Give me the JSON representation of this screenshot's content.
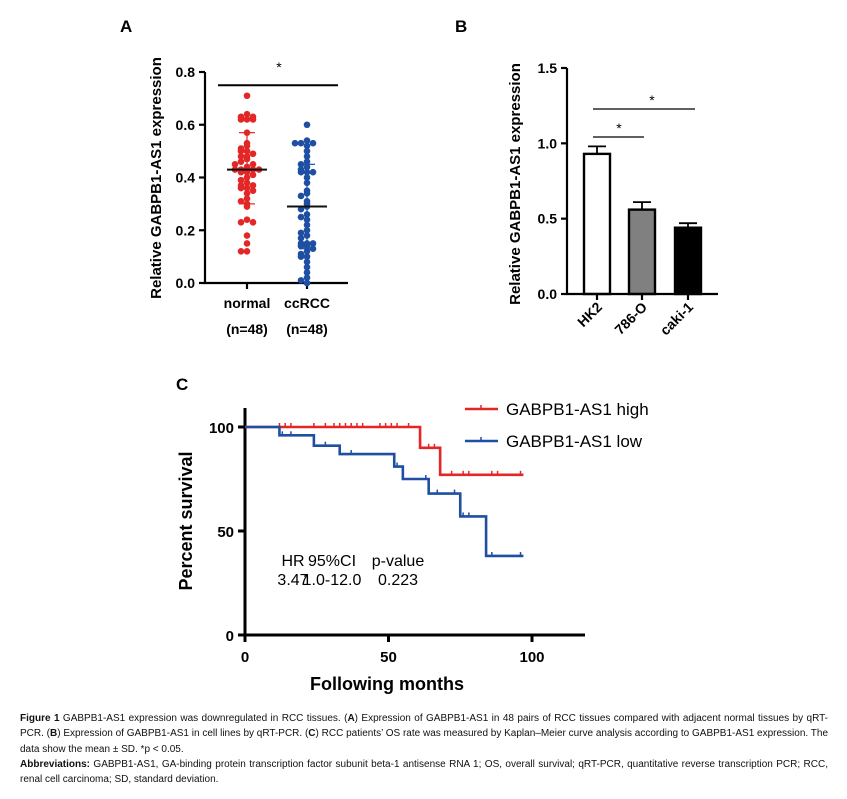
{
  "chart_data": [
    {
      "panel": "A",
      "type": "scatter",
      "ylabel": "Relative GABPB1-AS1 expression",
      "ylim": [
        0,
        0.8
      ],
      "yticks": [
        "0.0",
        "0.2",
        "0.4",
        "0.6",
        "0.8"
      ],
      "categories": [
        "normal",
        "ccRCC"
      ],
      "category_n": [
        "(n=48)",
        "(n=48)"
      ],
      "significance": "*",
      "series": [
        {
          "name": "normal",
          "color": "#e32626",
          "mean": 0.43,
          "sd_low": 0.3,
          "sd_high": 0.57,
          "values": [
            0.71,
            0.64,
            0.63,
            0.63,
            0.62,
            0.62,
            0.62,
            0.57,
            0.53,
            0.52,
            0.51,
            0.5,
            0.5,
            0.49,
            0.48,
            0.48,
            0.47,
            0.46,
            0.45,
            0.45,
            0.44,
            0.43,
            0.43,
            0.43,
            0.43,
            0.42,
            0.42,
            0.41,
            0.4,
            0.39,
            0.38,
            0.37,
            0.37,
            0.36,
            0.36,
            0.35,
            0.34,
            0.32,
            0.31,
            0.3,
            0.29,
            0.24,
            0.23,
            0.23,
            0.18,
            0.15,
            0.12,
            0.12
          ]
        },
        {
          "name": "ccRCC",
          "color": "#1f4fa3",
          "mean": 0.29,
          "sd_low": 0.13,
          "sd_high": 0.45,
          "values": [
            0.6,
            0.54,
            0.53,
            0.53,
            0.53,
            0.52,
            0.5,
            0.48,
            0.46,
            0.45,
            0.44,
            0.43,
            0.42,
            0.42,
            0.42,
            0.4,
            0.38,
            0.35,
            0.34,
            0.33,
            0.31,
            0.3,
            0.29,
            0.28,
            0.26,
            0.25,
            0.24,
            0.22,
            0.2,
            0.19,
            0.18,
            0.17,
            0.15,
            0.15,
            0.15,
            0.14,
            0.14,
            0.13,
            0.12,
            0.11,
            0.1,
            0.1,
            0.08,
            0.06,
            0.04,
            0.02,
            0.01,
            0.0
          ]
        }
      ]
    },
    {
      "panel": "B",
      "type": "bar",
      "ylabel": "Relative GABPB1-AS1 expression",
      "ylim": [
        0,
        1.5
      ],
      "yticks": [
        "0.0",
        "0.5",
        "1.0",
        "1.5"
      ],
      "categories": [
        "HK2",
        "786-O",
        "caki-1"
      ],
      "values": [
        0.93,
        0.56,
        0.44
      ],
      "errors": [
        0.05,
        0.05,
        0.03
      ],
      "colors": [
        "#ffffff",
        "#808080",
        "#000000"
      ],
      "significance": [
        {
          "from": "HK2",
          "to": "786-O",
          "label": "*"
        },
        {
          "from": "HK2",
          "to": "caki-1",
          "label": "*"
        }
      ]
    },
    {
      "panel": "C",
      "type": "line",
      "subtype": "kaplan-meier",
      "xlabel": "Following months",
      "ylabel": "Percent survival",
      "xlim": [
        0,
        120
      ],
      "ylim": [
        0,
        110
      ],
      "xticks": [
        "0",
        "50",
        "100"
      ],
      "yticks": [
        "0",
        "50",
        "100"
      ],
      "legend_position": "top-right",
      "series": [
        {
          "name": "GABPB1-AS1 high",
          "color": "#e32626",
          "steps": [
            [
              0,
              100
            ],
            [
              61,
              90
            ],
            [
              68,
              77
            ],
            [
              97,
              77
            ]
          ],
          "censored": [
            12,
            14,
            16,
            24,
            28,
            31,
            33,
            35,
            37,
            39,
            41,
            47,
            49,
            51,
            53,
            57,
            64,
            66,
            72,
            76,
            78,
            86,
            88,
            96
          ]
        },
        {
          "name": "GABPB1-AS1 low",
          "color": "#1f4fa3",
          "steps": [
            [
              0,
              100
            ],
            [
              12,
              96
            ],
            [
              24,
              91
            ],
            [
              33,
              87
            ],
            [
              52,
              81
            ],
            [
              55,
              75
            ],
            [
              64,
              68
            ],
            [
              75,
              57
            ],
            [
              84,
              38
            ],
            [
              97,
              38
            ]
          ],
          "censored": [
            13,
            16,
            28,
            33,
            37,
            53,
            63,
            67,
            73,
            76,
            78,
            86,
            96
          ]
        }
      ],
      "stats": {
        "headers": [
          "HR",
          "95%CI",
          "p-value"
        ],
        "values": [
          "3.47",
          "1.0-12.0",
          "0.223"
        ]
      }
    }
  ],
  "caption": {
    "fig_label": "Figure 1",
    "fig_title": " GABPB1-AS1 expression was downregulated in RCC tissues. (",
    "a": "A",
    "a_text": ") Expression of GABPB1-AS1 in 48 pairs of RCC tissues compared with adjacent normal tissues by qRT-PCR. (",
    "b": "B",
    "b_text": ") Expression of GABPB1-AS1 in cell lines by qRT-PCR. (",
    "c": "C",
    "c_text": ") RCC patients’ OS rate was measured by Kaplan–Meier curve analysis according to GABPB1-AS1 expression. The data show the mean ± SD. *p < 0.05.",
    "abbr_label": "Abbreviations:",
    "abbr_text": " GABPB1-AS1, GA-binding protein transcription factor subunit beta-1 antisense RNA 1; OS, overall survival; qRT-PCR, quantitative reverse transcription PCR; RCC, renal cell carcinoma; SD, standard deviation."
  }
}
